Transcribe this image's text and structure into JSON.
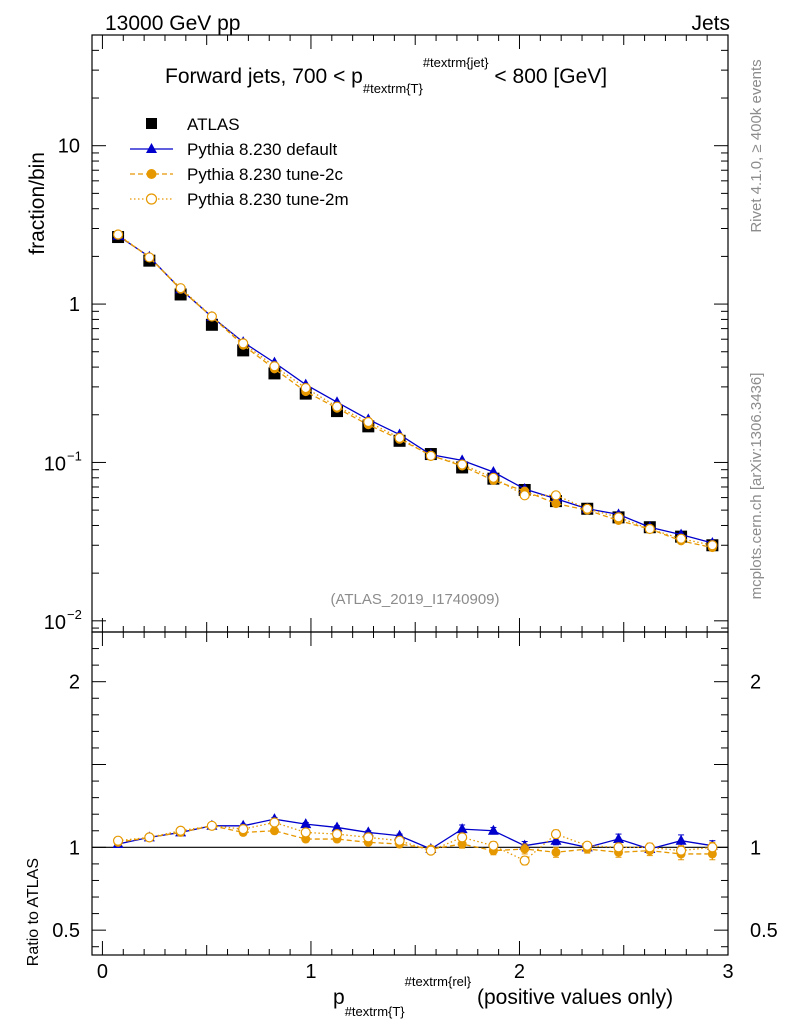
{
  "header": {
    "left": "13000 GeV pp",
    "right": "Jets"
  },
  "side_text": {
    "rivet": "Rivet 4.1.0, ≥ 400k events",
    "mcplots": "mcplots.cern.ch [arXiv:1306.3436]"
  },
  "chart_data": {
    "type": "line",
    "title": "Forward jets, 700 < p_{#textrm{T}}^{#textrm{jet}} < 800 [GeV]",
    "title_parts": {
      "pre": "Forward jets, 700 < p",
      "sub": "#textrm{T}",
      "sup": "#textrm{jet}",
      "post": " < 800 [GeV]"
    },
    "analysis_tag": "(ATLAS_2019_I1740909)",
    "xlabel_parts": {
      "main": "p",
      "sub": "#textrm{T}",
      "sup": "#textrm{rel}",
      "post": " (positive values only)"
    },
    "ylabel": "fraction/bin",
    "ratio_ylabel": "Ratio to ATLAS",
    "xlim": [
      -0.05,
      3.0
    ],
    "ylim_log": [
      0.0085,
      50
    ],
    "ratio_ylim": [
      0.35,
      2.3
    ],
    "x_ticks": [
      {
        "value": 0,
        "label": "0"
      },
      {
        "value": 1,
        "label": "1"
      },
      {
        "value": 2,
        "label": "2"
      },
      {
        "value": 3,
        "label": "3"
      }
    ],
    "y_ticks": [
      {
        "value": 10,
        "label": "10"
      },
      {
        "value": 1,
        "label": "1"
      },
      {
        "value": 0.1,
        "label": "10",
        "exp": "−1"
      },
      {
        "value": 0.01,
        "label": "10",
        "exp": "−2"
      }
    ],
    "ratio_ticks": [
      {
        "value": 2,
        "label": "2"
      },
      {
        "value": 1,
        "label": "1"
      },
      {
        "value": 0.5,
        "label": "0.5"
      }
    ],
    "x": [
      0.075,
      0.225,
      0.375,
      0.525,
      0.675,
      0.825,
      0.975,
      1.125,
      1.275,
      1.425,
      1.575,
      1.725,
      1.875,
      2.025,
      2.175,
      2.325,
      2.475,
      2.625,
      2.775,
      2.925
    ],
    "series": [
      {
        "name": "ATLAS",
        "color": "#000000",
        "marker": "square",
        "values": [
          2.65,
          1.88,
          1.15,
          0.74,
          0.51,
          0.365,
          0.272,
          0.211,
          0.169,
          0.137,
          0.113,
          0.093,
          0.079,
          0.067,
          0.057,
          0.051,
          0.045,
          0.039,
          0.034,
          0.03
        ],
        "ratio": [
          1.0,
          1.0,
          1.0,
          1.0,
          1.0,
          1.0,
          1.0,
          1.0,
          1.0,
          1.0,
          1.0,
          1.0,
          1.0,
          1.0,
          1.0,
          1.0,
          1.0,
          1.0,
          1.0,
          1.0
        ]
      },
      {
        "name": "Pythia 8.230 default",
        "color": "#0000cc",
        "marker": "triangle",
        "line": "solid",
        "values": [
          2.7,
          1.99,
          1.24,
          0.83,
          0.575,
          0.427,
          0.31,
          0.24,
          0.187,
          0.15,
          0.112,
          0.103,
          0.087,
          0.068,
          0.059,
          0.051,
          0.047,
          0.039,
          0.035,
          0.031
        ],
        "ratio": [
          1.02,
          1.06,
          1.09,
          1.13,
          1.13,
          1.17,
          1.14,
          1.12,
          1.09,
          1.07,
          0.99,
          1.11,
          1.1,
          1.01,
          1.04,
          1.0,
          1.05,
          0.99,
          1.04,
          1.01
        ]
      },
      {
        "name": "Pythia 8.230 tune-2c",
        "color": "#e69800",
        "marker": "circle",
        "line": "dashed",
        "values": [
          2.72,
          1.98,
          1.24,
          0.83,
          0.55,
          0.39,
          0.28,
          0.22,
          0.173,
          0.14,
          0.111,
          0.095,
          0.077,
          0.066,
          0.055,
          0.05,
          0.043,
          0.038,
          0.032,
          0.029
        ],
        "ratio": [
          1.03,
          1.06,
          1.09,
          1.13,
          1.09,
          1.1,
          1.05,
          1.05,
          1.03,
          1.02,
          0.99,
          1.02,
          0.98,
          0.99,
          0.97,
          0.99,
          0.97,
          0.98,
          0.96,
          0.96
        ]
      },
      {
        "name": "Pythia 8.230 tune-2m",
        "color": "#e69800",
        "marker": "open-circle",
        "line": "dotted",
        "values": [
          2.75,
          1.97,
          1.26,
          0.835,
          0.565,
          0.405,
          0.295,
          0.225,
          0.18,
          0.143,
          0.11,
          0.097,
          0.08,
          0.062,
          0.062,
          0.051,
          0.045,
          0.038,
          0.033,
          0.03
        ],
        "ratio": [
          1.04,
          1.06,
          1.1,
          1.13,
          1.11,
          1.15,
          1.09,
          1.08,
          1.06,
          1.04,
          0.98,
          1.06,
          1.01,
          0.92,
          1.08,
          1.01,
          1.0,
          1.0,
          0.98,
          1.0
        ]
      }
    ],
    "ratio_errors": {
      "Pythia 8.230 default": [
        0.01,
        0.01,
        0.01,
        0.01,
        0.01,
        0.01,
        0.01,
        0.01,
        0.01,
        0.01,
        0.015,
        0.025,
        0.02,
        0.025,
        0.025,
        0.02,
        0.03,
        0.025,
        0.035,
        0.03
      ],
      "Pythia 8.230 tune-2c": [
        0.01,
        0.01,
        0.01,
        0.01,
        0.01,
        0.01,
        0.01,
        0.01,
        0.01,
        0.01,
        0.015,
        0.025,
        0.025,
        0.03,
        0.03,
        0.025,
        0.03,
        0.03,
        0.035,
        0.035
      ],
      "Pythia 8.230 tune-2m": [
        0.01,
        0.01,
        0.01,
        0.01,
        0.01,
        0.01,
        0.01,
        0.01,
        0.01,
        0.01,
        0.015,
        0.02,
        0.025,
        0.025,
        0.025,
        0.02,
        0.025,
        0.025,
        0.03,
        0.03
      ]
    }
  }
}
